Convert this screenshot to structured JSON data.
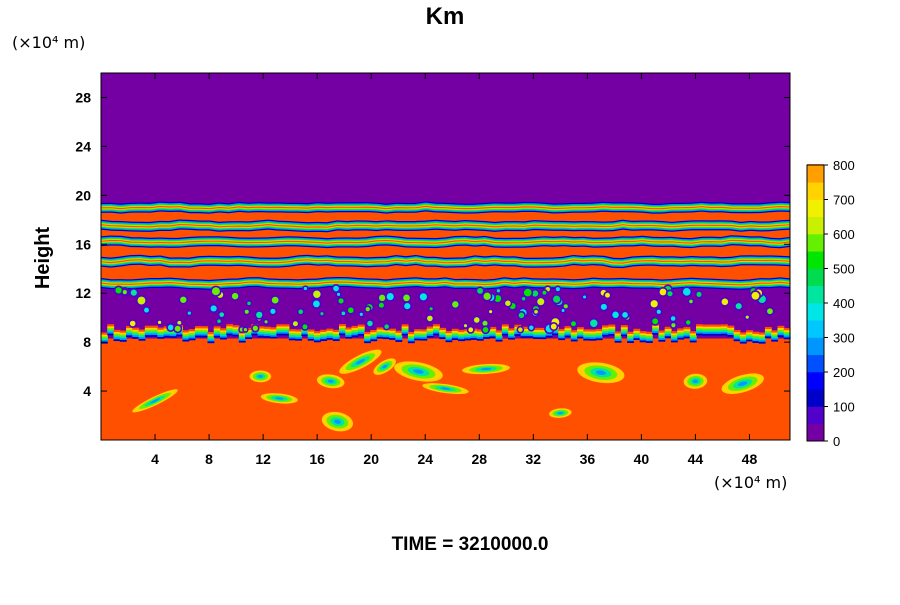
{
  "chart_data": {
    "type": "heatmap",
    "title": "Km",
    "ylabel": "Height",
    "xlabel": "",
    "x_unit": "(×10⁴ m)",
    "y_unit": "(×10⁴ m)",
    "xlim": [
      0,
      51
    ],
    "ylim": [
      0,
      30
    ],
    "x_ticks": [
      4,
      8,
      12,
      16,
      20,
      24,
      28,
      32,
      36,
      40,
      44,
      48
    ],
    "y_ticks": [
      4,
      8,
      12,
      16,
      20,
      24,
      28
    ],
    "x_tick_labels": [
      "4",
      "8",
      "12",
      "16",
      "20",
      "24",
      "28",
      "32",
      "36",
      "40",
      "44",
      "48"
    ],
    "y_tick_labels": [
      "4",
      "8",
      "12",
      "16",
      "20",
      "24",
      "28"
    ],
    "colorbar": {
      "min": 0,
      "max": 800,
      "step": 50,
      "tick_values": [
        0,
        100,
        200,
        300,
        400,
        500,
        600,
        700,
        800
      ],
      "tick_labels": [
        "0",
        "100",
        "200",
        "300",
        "400",
        "500",
        "600",
        "700",
        "800"
      ],
      "colors": [
        "#7400a3",
        "#5200cc",
        "#0000c8",
        "#0000ff",
        "#0050ff",
        "#0096ff",
        "#00c8ff",
        "#00e6e6",
        "#00e6a0",
        "#00dc50",
        "#00e600",
        "#64f000",
        "#c8f000",
        "#f0f000",
        "#ffd200",
        "#ffa000",
        "#ff5000",
        "#ff0000",
        "#ff9696"
      ]
    },
    "footer": "TIME = 3210000.0",
    "layers": [
      {
        "z_range": [
          0,
          8.3
        ],
        "value": 800,
        "pattern": "saturated with scattered embedded features"
      },
      {
        "z_range": [
          8.3,
          12.5
        ],
        "value": 0,
        "pattern": "low with scattered small patches"
      },
      {
        "z_range": [
          12.5,
          16.2
        ],
        "value": 800,
        "pattern": "banded high-value layer"
      },
      {
        "z_range": [
          16.2,
          19.3
        ],
        "value": 800,
        "pattern": "thin banded layer"
      },
      {
        "z_range": [
          19.3,
          30
        ],
        "value": 0,
        "pattern": "uniform low"
      }
    ]
  }
}
